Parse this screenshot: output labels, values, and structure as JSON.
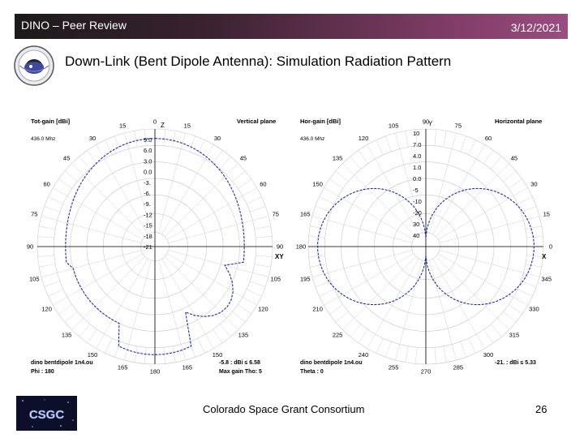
{
  "header": {
    "left": "DINO – Peer Review",
    "date": "3/12/2021"
  },
  "title": "Down-Link (Bent Dipole Antenna):  Simulation Radiation Pattern",
  "vertical_plot": {
    "header_left": "Tot-gain [dBi]",
    "freq": "436.0 Mhz",
    "header_right": "Vertical plane",
    "axis_xy": "XY",
    "axis_z": "Z",
    "angle_labels": [
      "0",
      "15",
      "30",
      "45",
      "60",
      "75",
      "90",
      "105",
      "120",
      "135",
      "150",
      "165",
      "180",
      "165",
      "150",
      "135",
      "120",
      "105",
      "90",
      "75",
      "60",
      "45",
      "30",
      "15"
    ],
    "ring_labels": [
      "9.0",
      "6.0",
      "3.0",
      "0.0",
      "-3.",
      "-6.",
      "-9.",
      "-12",
      "-15",
      "-18",
      "-21"
    ],
    "footer_left_1": "dino bentdipole 1n4.ou",
    "footer_left_2": "Phi : 180",
    "footer_right_1": "-5.8 : dBi ≤ 6.58",
    "footer_right_2": "Max gain Tho: 5"
  },
  "horizontal_plot": {
    "header_left": "Hor-gain [dBi]",
    "freq": "436.0 Mhz",
    "header_right": "Horizontal plane",
    "axis_x": "X",
    "axis_y": "Y",
    "angle_labels": [
      "90",
      "75",
      "60",
      "45",
      "30",
      "15",
      "0",
      "345",
      "330",
      "315",
      "300",
      "285",
      "270",
      "255",
      "240",
      "225",
      "210",
      "195",
      "180",
      "165",
      "150",
      "135",
      "120",
      "105"
    ],
    "ring_labels": [
      "10",
      "7.0",
      "4.0",
      "1.0",
      "0.0",
      "-5",
      "-10",
      "-20",
      "30",
      "40"
    ],
    "footer_left_1": "dino bentdipole 1n4.ou",
    "footer_left_2": "Theta : 0",
    "footer_right": "-21. : dBi ≤ 5.33"
  },
  "footer": {
    "center": "Colorado Space Grant Consortium",
    "page": "26",
    "logo_text": "CSGC"
  }
}
